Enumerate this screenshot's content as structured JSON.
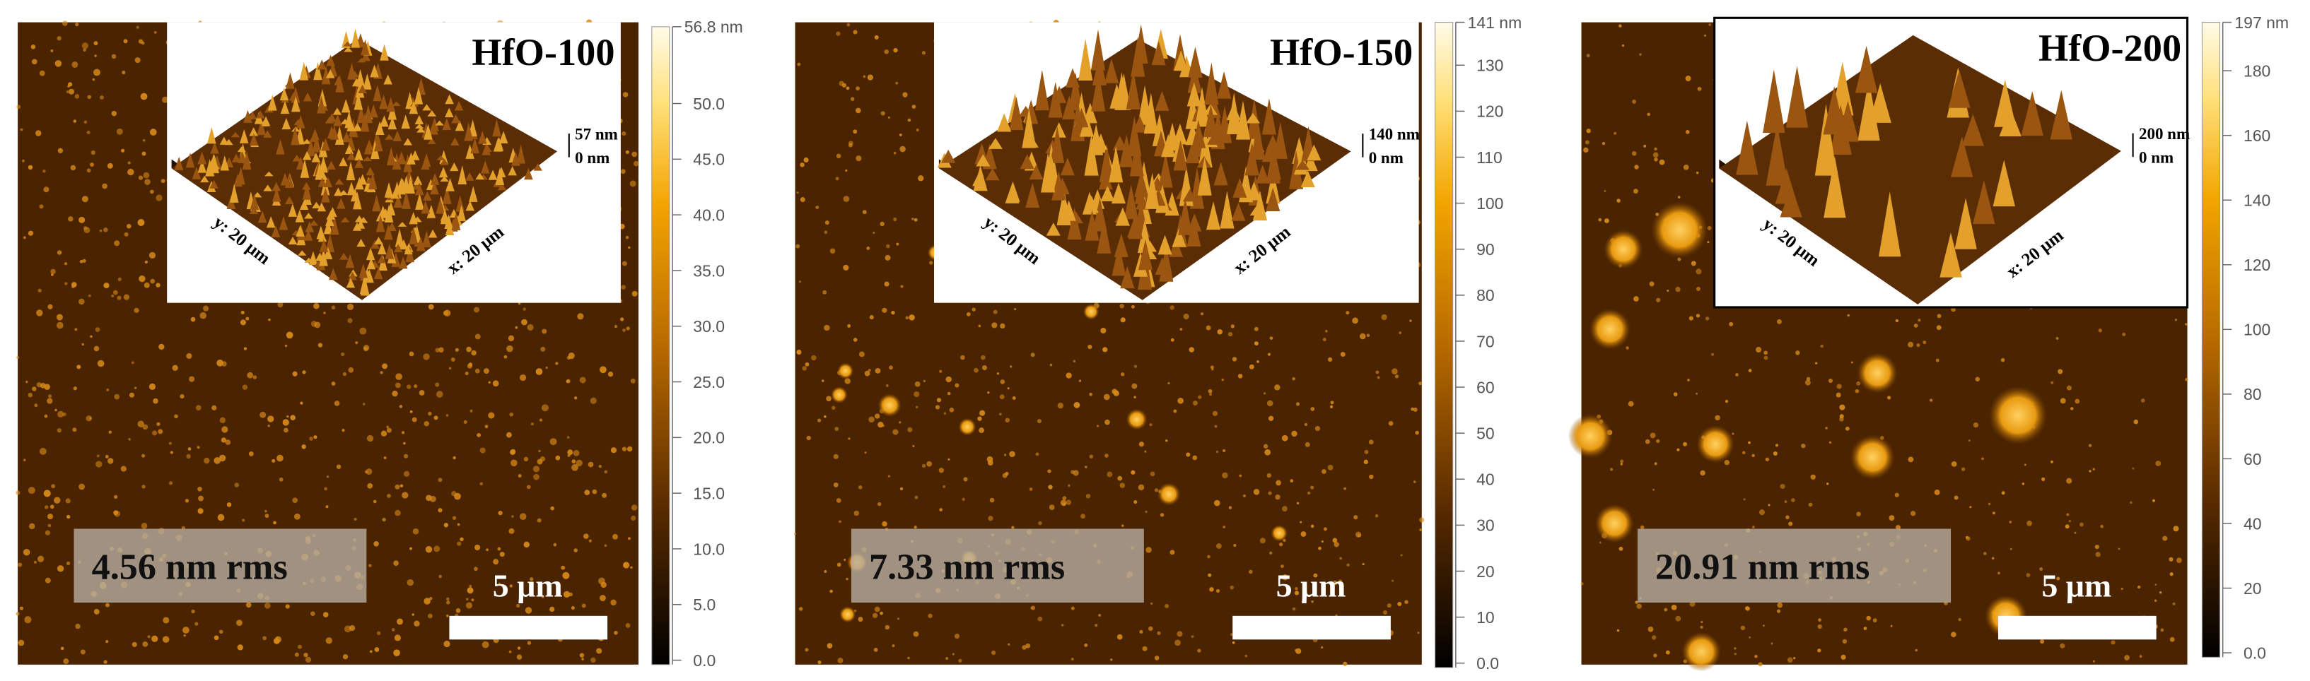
{
  "panels": [
    {
      "label": "HfO-100",
      "rms": "4.56 nm rms",
      "scale_bar": "5 μm",
      "inset": {
        "z_max": "57 nm",
        "z_min": "0 nm",
        "y_axis": "y: 20 μm",
        "x_axis": "x: 20 μm"
      },
      "colorbar": {
        "max_label": "56.8 nm",
        "ticks": [
          "0.0",
          "5.0",
          "10.0",
          "15.0",
          "20.0",
          "25.0",
          "30.0",
          "35.0",
          "40.0",
          "45.0",
          "50.0"
        ]
      }
    },
    {
      "label": "HfO-150",
      "rms": "7.33 nm rms",
      "scale_bar": "5 μm",
      "inset": {
        "z_max": "140 nm",
        "z_min": "0 nm",
        "y_axis": "y: 20 μm",
        "x_axis": "x: 20 μm"
      },
      "colorbar": {
        "max_label": "141 nm",
        "ticks": [
          "0.0",
          "10",
          "20",
          "30",
          "40",
          "50",
          "60",
          "70",
          "80",
          "90",
          "100",
          "110",
          "120",
          "130"
        ]
      }
    },
    {
      "label": "HfO-200",
      "rms": "20.91 nm rms",
      "scale_bar": "5 μm",
      "inset": {
        "z_max": "200 nm",
        "z_min": "0 nm",
        "y_axis": "y: 20 μm",
        "x_axis": "x: 20 μm"
      },
      "colorbar": {
        "max_label": "197 nm",
        "ticks": [
          "0.0",
          "20",
          "40",
          "60",
          "80",
          "100",
          "120",
          "140",
          "160",
          "180"
        ]
      }
    }
  ]
}
